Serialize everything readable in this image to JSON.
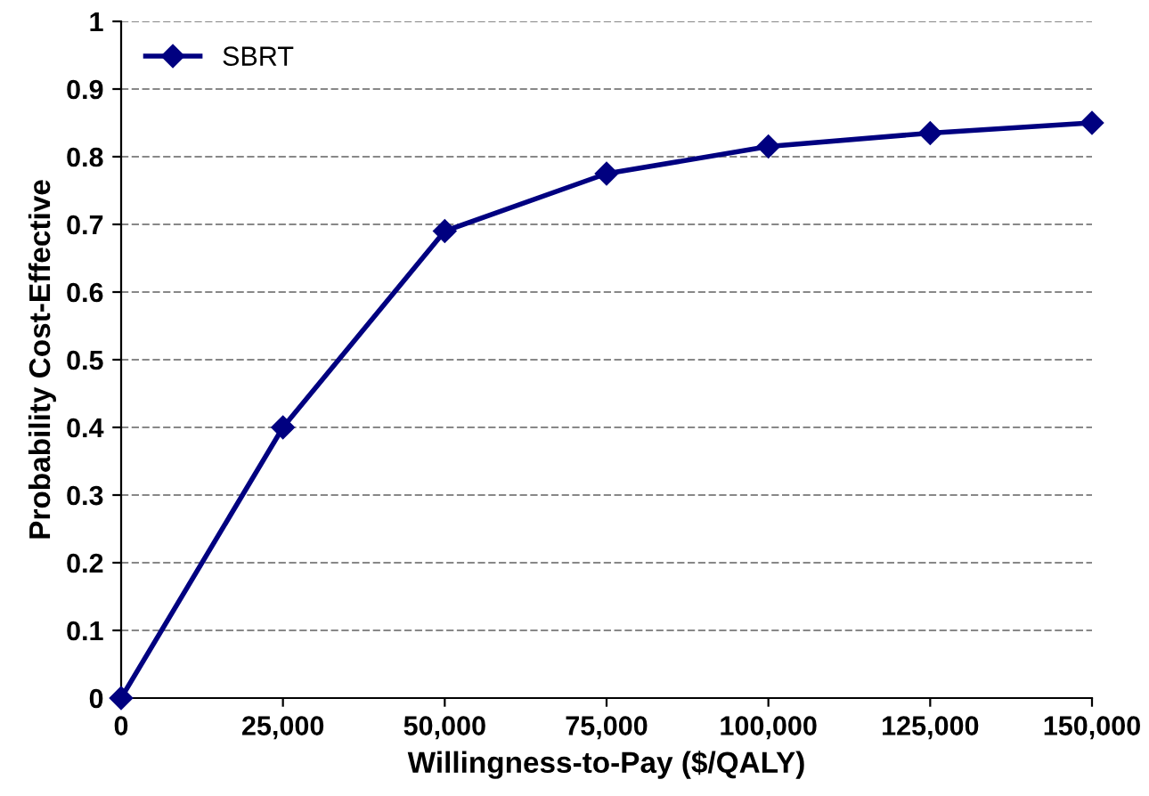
{
  "chart_data": {
    "type": "line",
    "xlabel": "Willingness-to-Pay ($/QALY)",
    "ylabel": "Probability Cost-Effective",
    "x": [
      0,
      25000,
      50000,
      75000,
      100000,
      125000,
      150000
    ],
    "series": [
      {
        "name": "SBRT",
        "color": "#000080",
        "values": [
          0,
          0.4,
          0.69,
          0.775,
          0.815,
          0.835,
          0.85
        ]
      }
    ],
    "xlim": [
      0,
      150000
    ],
    "xticks": [
      0,
      {
        "value": 25000,
        "label": "25,000"
      },
      {
        "value": 50000,
        "label": "50,000"
      },
      {
        "value": 75000,
        "label": "75,000"
      },
      {
        "value": 100000,
        "label": "100,000"
      },
      {
        "value": 125000,
        "label": "125,000"
      },
      {
        "value": 150000,
        "label": "150,000"
      }
    ],
    "ylim": [
      0,
      1
    ],
    "yticks": [
      0,
      0.1,
      0.2,
      0.3,
      0.4,
      0.5,
      0.6,
      0.7,
      0.8,
      0.9,
      1
    ],
    "grid": "y",
    "legend": "top left",
    "marker": "diamond",
    "line_style": "solid"
  }
}
